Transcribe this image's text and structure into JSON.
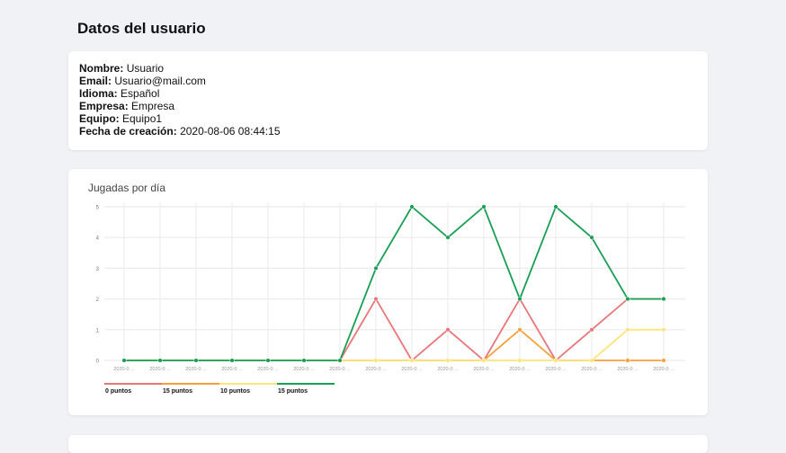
{
  "title": "Datos del usuario",
  "info": [
    {
      "label": "Nombre:",
      "value": "Usuario"
    },
    {
      "label": "Email:",
      "value": "Usuario@mail.com"
    },
    {
      "label": "Idioma:",
      "value": "Español"
    },
    {
      "label": "Empresa:",
      "value": "Empresa"
    },
    {
      "label": "Equipo:",
      "value": "Equipo1"
    },
    {
      "label": "Fecha de creación:",
      "value": "2020-08-06 08:44:15"
    }
  ],
  "chart_data": {
    "type": "line",
    "title": "Jugadas por día",
    "x_tick_label": "2020-0 ...",
    "ylim": [
      0,
      5
    ],
    "yticks": [
      0,
      1,
      2,
      3,
      4,
      5
    ],
    "grid": true,
    "legend_position": "bottom",
    "x": [
      1,
      2,
      3,
      4,
      5,
      6,
      7,
      8,
      9,
      10,
      11,
      12,
      13,
      14,
      15,
      16
    ],
    "series": [
      {
        "name": "0 puntos",
        "color": "#e8757a",
        "values": [
          0,
          0,
          0,
          0,
          0,
          0,
          0,
          2,
          0,
          1,
          0,
          2,
          0,
          1,
          2,
          2
        ]
      },
      {
        "name": "15 puntos",
        "color": "#f5a13a",
        "values": [
          0,
          0,
          0,
          0,
          0,
          0,
          0,
          0,
          0,
          0,
          0,
          1,
          0,
          0,
          0,
          0
        ]
      },
      {
        "name": "10 puntos",
        "color": "#fde47a",
        "values": [
          0,
          0,
          0,
          0,
          0,
          0,
          0,
          0,
          0,
          0,
          0,
          0,
          0,
          0,
          1,
          1
        ]
      },
      {
        "name": "15 puntos",
        "color": "#1a9e55",
        "values": [
          0,
          0,
          0,
          0,
          0,
          0,
          0,
          3,
          5,
          4,
          5,
          2,
          5,
          4,
          2,
          2
        ]
      }
    ]
  }
}
